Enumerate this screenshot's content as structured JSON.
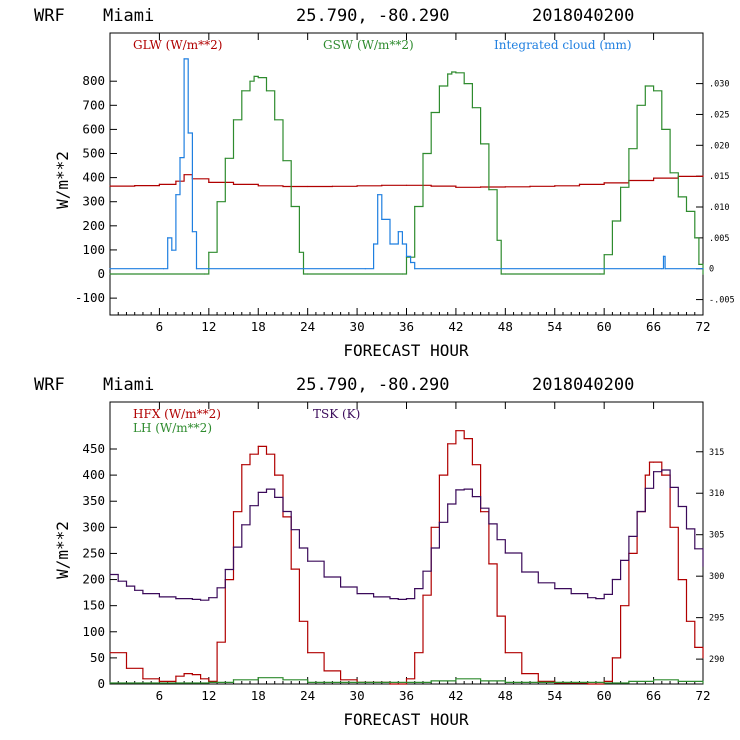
{
  "panels": [
    {
      "header": {
        "model": "WRF",
        "site": "Miami",
        "coords": "25.790, -80.290",
        "run": "2018040200"
      }
    },
    {
      "header": {
        "model": "WRF",
        "site": "Miami",
        "coords": "25.790, -80.290",
        "run": "2018040200"
      }
    }
  ],
  "chart_data": [
    {
      "type": "line",
      "title": "",
      "xlabel": "FORECAST HOUR",
      "ylabel": "W/m**2",
      "xlim": [
        0,
        72
      ],
      "ylim": [
        -170,
        1000
      ],
      "xticks": [
        "6",
        "12",
        "18",
        "24",
        "30",
        "36",
        "42",
        "48",
        "54",
        "60",
        "66",
        "72"
      ],
      "yticks": [
        "-100",
        "0",
        "100",
        "200",
        "300",
        "400",
        "500",
        "600",
        "700",
        "800"
      ],
      "y2lim": [
        -0.0075,
        0.0382
      ],
      "y2ticks": [
        ".030",
        ".025",
        ".020",
        ".015",
        ".010",
        ".005",
        "0",
        "-.005"
      ],
      "grid": false,
      "legend": "top",
      "series": [
        {
          "name": "GLW (W/m**2)",
          "color": "#b00000",
          "axis": "left",
          "x": [
            0,
            3,
            6,
            8,
            9,
            10,
            12,
            15,
            18,
            21,
            24,
            27,
            30,
            33,
            36,
            39,
            42,
            45,
            48,
            51,
            54,
            57,
            60,
            63,
            66,
            69,
            72
          ],
          "y": [
            365,
            367,
            372,
            385,
            412,
            395,
            380,
            372,
            366,
            363,
            363,
            364,
            366,
            368,
            368,
            365,
            360,
            361,
            362,
            364,
            366,
            372,
            378,
            388,
            398,
            405,
            408
          ]
        },
        {
          "name": "GSW (W/m**2)",
          "color": "#2e8b2e",
          "axis": "left",
          "x": [
            0,
            11.5,
            12,
            13,
            14,
            15,
            16,
            17,
            17.5,
            18,
            19,
            20,
            21,
            22,
            23,
            23.5,
            24,
            35.5,
            36,
            37,
            38,
            39,
            40,
            41,
            41.5,
            42,
            43,
            44,
            45,
            46,
            47,
            47.5,
            48,
            59.5,
            60,
            61,
            62,
            63,
            64,
            65,
            66,
            67,
            68,
            69,
            70,
            71,
            71.5,
            72
          ],
          "y": [
            0,
            0,
            90,
            300,
            480,
            640,
            760,
            800,
            820,
            815,
            760,
            640,
            470,
            280,
            90,
            0,
            0,
            0,
            70,
            280,
            500,
            670,
            780,
            830,
            838,
            835,
            790,
            690,
            540,
            350,
            140,
            0,
            0,
            0,
            80,
            220,
            360,
            520,
            700,
            780,
            760,
            600,
            420,
            320,
            260,
            150,
            40,
            0
          ]
        },
        {
          "name": "Integrated cloud (mm)",
          "color": "#1f7fe0",
          "axis": "right",
          "x": [
            0,
            6.5,
            7,
            7.5,
            8,
            8.5,
            9,
            9.5,
            10,
            10.5,
            31,
            32,
            32.5,
            33,
            34,
            35,
            35.5,
            36,
            36.5,
            37,
            67,
            67.2,
            67.4,
            72
          ],
          "y": [
            0,
            0,
            0.005,
            0.003,
            0.012,
            0.018,
            0.034,
            0.022,
            0.006,
            0,
            0,
            0.004,
            0.012,
            0.008,
            0.004,
            0.006,
            0.004,
            0.002,
            0.001,
            0,
            0,
            0.002,
            0,
            0
          ]
        }
      ]
    },
    {
      "type": "line",
      "title": "",
      "xlabel": "FORECAST HOUR",
      "ylabel": "W/m**2",
      "xlim": [
        0,
        72
      ],
      "ylim": [
        0,
        540
      ],
      "xticks": [
        "6",
        "12",
        "18",
        "24",
        "30",
        "36",
        "42",
        "48",
        "54",
        "60",
        "66",
        "72"
      ],
      "yticks": [
        "0",
        "50",
        "100",
        "150",
        "200",
        "250",
        "300",
        "350",
        "400",
        "450"
      ],
      "y2lim": [
        287,
        321
      ],
      "y2ticks": [
        "290",
        "295",
        "300",
        "305",
        "310",
        "315"
      ],
      "grid": false,
      "legend": "top-left",
      "series": [
        {
          "name": "HFX (W/m**2)",
          "color": "#b00000",
          "axis": "left",
          "x": [
            0,
            2,
            4,
            6,
            8,
            9,
            10,
            11,
            12,
            13,
            14,
            15,
            16,
            17,
            18,
            19,
            20,
            21,
            22,
            23,
            24,
            26,
            28,
            30,
            34,
            36,
            37,
            38,
            39,
            40,
            41,
            42,
            43,
            44,
            45,
            46,
            47,
            48,
            50,
            52,
            54,
            58,
            60,
            61,
            62,
            63,
            64,
            65,
            65.5,
            66,
            67,
            68,
            69,
            70,
            71,
            72
          ],
          "y": [
            60,
            30,
            10,
            5,
            15,
            20,
            18,
            10,
            5,
            80,
            200,
            330,
            420,
            440,
            455,
            440,
            400,
            320,
            220,
            120,
            60,
            25,
            8,
            3,
            0,
            10,
            60,
            170,
            300,
            400,
            460,
            485,
            470,
            420,
            330,
            230,
            130,
            60,
            20,
            5,
            2,
            0,
            5,
            50,
            150,
            250,
            330,
            400,
            425,
            425,
            400,
            300,
            200,
            120,
            70,
            50
          ]
        },
        {
          "name": "LH (W/m**2)",
          "color": "#2e8b2e",
          "axis": "left",
          "x": [
            0,
            12,
            15,
            18,
            21,
            24,
            36,
            39,
            42,
            45,
            48,
            60,
            63,
            66,
            69,
            72
          ],
          "y": [
            2,
            3,
            8,
            12,
            8,
            3,
            3,
            6,
            10,
            6,
            3,
            2,
            5,
            8,
            5,
            2
          ]
        },
        {
          "name": "TSK (K)",
          "color": "#3a0a5a",
          "axis": "right",
          "x": [
            0,
            1,
            2,
            3,
            4,
            6,
            8,
            10,
            11,
            12,
            13,
            14,
            15,
            16,
            17,
            18,
            19,
            20,
            21,
            22,
            23,
            24,
            26,
            28,
            30,
            32,
            34,
            35,
            36,
            37,
            38,
            39,
            40,
            41,
            42,
            43,
            44,
            45,
            46,
            47,
            48,
            50,
            52,
            54,
            56,
            58,
            59,
            60,
            61,
            62,
            63,
            64,
            65,
            66,
            67,
            68,
            69,
            70,
            71,
            72
          ],
          "y": [
            300.2,
            299.4,
            298.8,
            298.3,
            297.9,
            297.5,
            297.3,
            297.2,
            297.1,
            297.4,
            298.6,
            300.8,
            303.5,
            306.2,
            308.5,
            310.1,
            310.5,
            309.5,
            307.8,
            305.6,
            303.4,
            301.8,
            299.9,
            298.7,
            297.9,
            297.5,
            297.3,
            297.2,
            297.3,
            298.5,
            300.6,
            303.4,
            306.5,
            308.7,
            310.4,
            310.5,
            309.6,
            308.2,
            306.3,
            304.4,
            302.8,
            300.5,
            299.2,
            298.5,
            297.9,
            297.4,
            297.3,
            297.8,
            299.6,
            301.9,
            304.8,
            307.8,
            310.6,
            312.6,
            312.8,
            310.7,
            308.4,
            305.7,
            303.3,
            301.2
          ]
        }
      ]
    }
  ]
}
